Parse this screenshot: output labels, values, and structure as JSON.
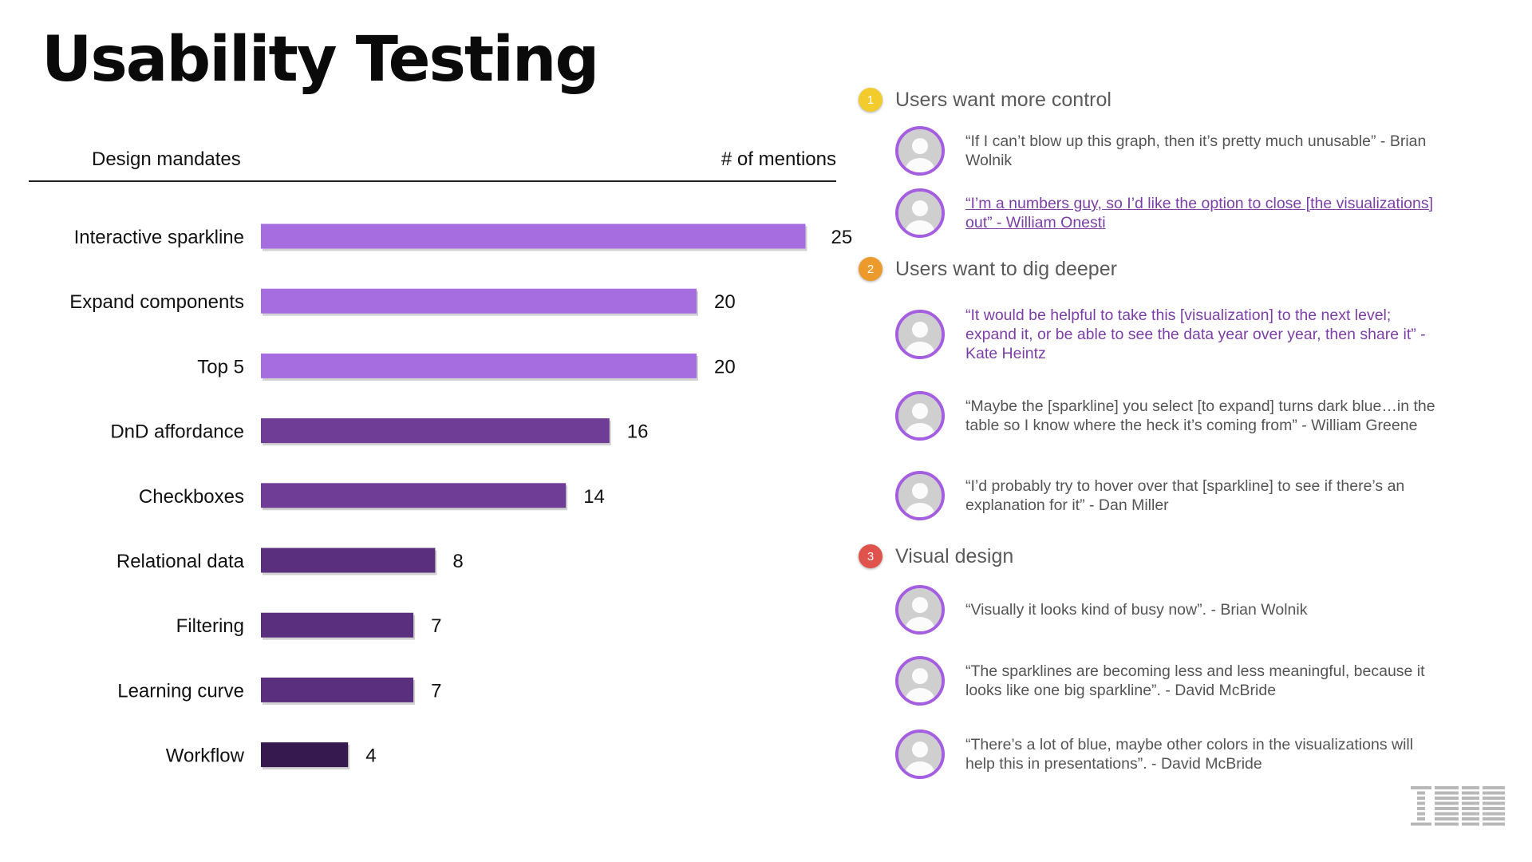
{
  "title": "Usability Testing",
  "table_header": {
    "left": "Design mandates",
    "right": "# of mentions"
  },
  "chart_data": {
    "type": "bar",
    "orientation": "horizontal",
    "title": "Usability Testing",
    "xlabel": "# of mentions",
    "ylabel": "Design mandates",
    "categories": [
      "Interactive sparkline",
      "Expand components",
      "Top 5",
      "DnD affordance",
      "Checkboxes",
      "Relational data",
      "Filtering",
      "Learning curve",
      "Workflow"
    ],
    "values": [
      25,
      20,
      20,
      16,
      14,
      8,
      7,
      7,
      4
    ],
    "xlim": [
      0,
      25
    ],
    "grid": false,
    "bar_colors": [
      "#a66de0",
      "#a66de0",
      "#a66de0",
      "#6f3d95",
      "#6f3d95",
      "#5a2f7d",
      "#5a2f7d",
      "#5a2f7d",
      "#36194f"
    ]
  },
  "sections": [
    {
      "number": "1",
      "badge_color": "#f2cc2d",
      "title": "Users want more control",
      "quotes": [
        {
          "avatar": "avatar-brian-wolnik",
          "style": "plain",
          "text": "“If I can’t blow up this graph, then it’s pretty much unusable” - Brian Wolnik"
        },
        {
          "avatar": "avatar-william-onesti",
          "style": "link",
          "text": "“I’m a numbers guy, so I’d like the option to close [the visualizations] out” - William Onesti"
        }
      ]
    },
    {
      "number": "2",
      "badge_color": "#ec9a2c",
      "title": "Users want to dig deeper",
      "quotes": [
        {
          "avatar": "avatar-kate-heintz",
          "style": "purple",
          "text": "“It would be helpful to take this [visualization] to the next level; expand it, or be able to see the data year over year, then share it” - Kate Heintz"
        },
        {
          "avatar": "avatar-william-greene",
          "style": "plain",
          "text": "“Maybe the [sparkline] you select [to expand] turns dark blue…in the table so I know where the heck it’s coming from” - William Greene"
        },
        {
          "avatar": "avatar-dan-miller",
          "style": "plain",
          "text": "“I’d probably try to hover over that [sparkline] to see if there’s an explanation for it” - Dan Miller"
        }
      ]
    },
    {
      "number": "3",
      "badge_color": "#e0524c",
      "title": "Visual design",
      "quotes": [
        {
          "avatar": "avatar-brian-wolnik",
          "style": "plain",
          "text": "“Visually it looks kind of busy now”. - Brian Wolnik"
        },
        {
          "avatar": "avatar-david-mcbride",
          "style": "plain",
          "text": "“The sparklines are becoming less and less meaningful, because it looks like one big sparkline”. - David McBride"
        },
        {
          "avatar": "avatar-david-mcbride",
          "style": "plain",
          "text": "“There’s a lot of blue, maybe other colors in the visualizations will help this in presentations”. - David McBride"
        }
      ]
    }
  ],
  "logo": {
    "icon": "ibm-logo",
    "text": "IBM",
    "color": "#b8b8b8"
  },
  "avatar_border_color": "#a45ee0"
}
